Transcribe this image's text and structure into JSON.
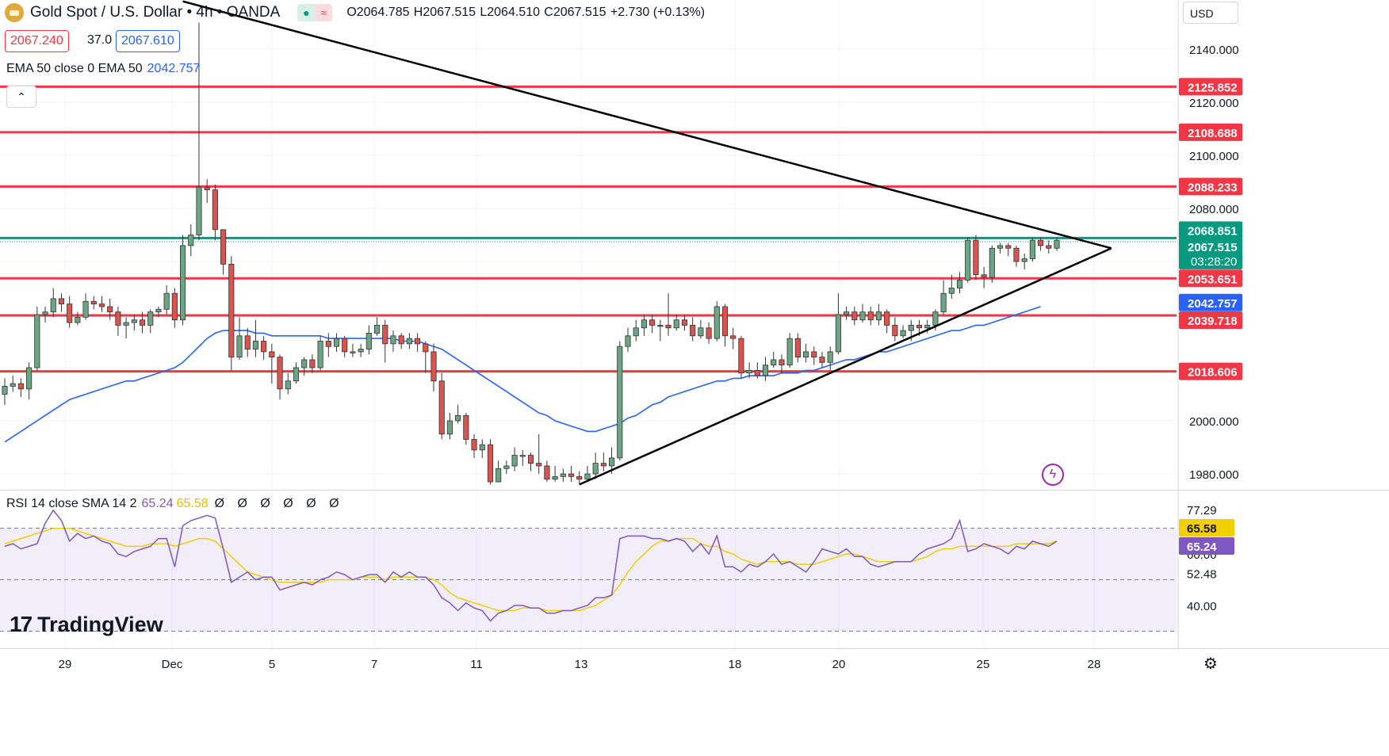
{
  "header": {
    "symbol": "Gold Spot / U.S. Dollar",
    "interval": "4h",
    "exchange": "OANDA",
    "title": "Gold Spot / U.S. Dollar • 4h • OANDA",
    "ohlc": {
      "open": "O2064.785",
      "high": "H2067.515",
      "low": "L2064.510",
      "close": "C2067.515",
      "change": "+2.730 (+0.13%)"
    }
  },
  "trade": {
    "sell": "2067.240",
    "spread": "37.0",
    "buy": "2067.610"
  },
  "ema": {
    "label": "EMA 50 close 0 EMA 50",
    "value": "2042.757"
  },
  "rsi_header": {
    "label": "RSI 14 close SMA 14 2",
    "rsi": "65.24",
    "sma": "65.58",
    "zeros": "Ø Ø Ø Ø Ø Ø"
  },
  "currency": "USD",
  "branding": {
    "name": "TradingView",
    "mark": "17"
  },
  "colors": {
    "up": "#6ba583",
    "down": "#d9534f",
    "support": "#f23645",
    "ema": "#2962ff",
    "current": "#089981",
    "rsi": "#7e57c2",
    "rsi_sma": "#f0d000",
    "trend": "#000000"
  },
  "chart_data": [
    {
      "type": "candlestick",
      "y_ticks": [
        1980,
        2000,
        2020,
        2040,
        2060,
        2080,
        2100,
        2120,
        2140
      ],
      "y_tick_labels": [
        "1980.000",
        "2000.000",
        "2020.000",
        "2040.000",
        "2060.000",
        "2080.000",
        "2100.000",
        "2120.000",
        "2140.000"
      ],
      "x_tick_labels": [
        "29",
        "Dec",
        "5",
        "7",
        "11",
        "13",
        "18",
        "20",
        "25",
        "28"
      ],
      "ylim": [
        1976,
        2154
      ],
      "horizontal_levels": [
        2125.852,
        2108.688,
        2088.233,
        2053.651,
        2039.718,
        2018.606
      ],
      "current_price_line": 2068.851,
      "price_labels": [
        {
          "text": "2125.852",
          "value": 2125.852,
          "color": "#f23645"
        },
        {
          "text": "2108.688",
          "value": 2108.688,
          "color": "#f23645"
        },
        {
          "text": "2088.233",
          "value": 2088.233,
          "color": "#f23645"
        },
        {
          "text": "2068.851",
          "value": 2068.851,
          "color": "#089981"
        },
        {
          "text": "2067.515",
          "value": 2067.515,
          "color": "#089981",
          "sub": "03:28:20"
        },
        {
          "text": "2053.651",
          "value": 2053.651,
          "color": "#f23645"
        },
        {
          "text": "2042.757",
          "value": 2042.757,
          "color": "#2962ff"
        },
        {
          "text": "2039.718",
          "value": 2039.718,
          "color": "#f23645"
        },
        {
          "text": "2018.606",
          "value": 2018.606,
          "color": "#f23645"
        }
      ],
      "candles": [
        [
          2010,
          2013,
          2006,
          2016
        ],
        [
          2013,
          2014,
          2011,
          2017
        ],
        [
          2014,
          2012,
          2009,
          2016
        ],
        [
          2012,
          2020,
          2008,
          2022
        ],
        [
          2020,
          2040,
          2019,
          2043
        ],
        [
          2040,
          2041,
          2037,
          2043
        ],
        [
          2041,
          2046,
          2039,
          2050
        ],
        [
          2046,
          2044,
          2041,
          2048
        ],
        [
          2044,
          2037,
          2035,
          2047
        ],
        [
          2037,
          2039,
          2036,
          2041
        ],
        [
          2039,
          2045,
          2038,
          2048
        ],
        [
          2045,
          2044,
          2042,
          2047
        ],
        [
          2044,
          2043,
          2041,
          2047
        ],
        [
          2043,
          2041,
          2038,
          2046
        ],
        [
          2041,
          2036,
          2032,
          2043
        ],
        [
          2036,
          2037,
          2031,
          2039
        ],
        [
          2037,
          2038,
          2034,
          2040
        ],
        [
          2038,
          2036,
          2033,
          2041
        ],
        [
          2036,
          2041,
          2033,
          2042
        ],
        [
          2041,
          2042,
          2039,
          2043
        ],
        [
          2042,
          2048,
          2040,
          2051
        ],
        [
          2048,
          2038,
          2035,
          2050
        ],
        [
          2038,
          2066,
          2036,
          2070
        ],
        [
          2066,
          2070,
          2062,
          2074
        ],
        [
          2070,
          2088,
          2068,
          2150
        ],
        [
          2088,
          2087,
          2082,
          2091
        ],
        [
          2087,
          2072,
          2068,
          2089
        ],
        [
          2072,
          2059,
          2055,
          2072
        ],
        [
          2059,
          2024,
          2019,
          2062
        ],
        [
          2024,
          2032,
          2023,
          2039
        ],
        [
          2032,
          2027,
          2024,
          2035
        ],
        [
          2027,
          2030,
          2024,
          2038
        ],
        [
          2030,
          2026,
          2023,
          2032
        ],
        [
          2026,
          2024,
          2014,
          2029
        ],
        [
          2024,
          2012,
          2008,
          2025
        ],
        [
          2012,
          2015,
          2010,
          2018
        ],
        [
          2015,
          2020,
          2014,
          2022
        ],
        [
          2020,
          2023,
          2017,
          2024
        ],
        [
          2023,
          2020,
          2018,
          2025
        ],
        [
          2020,
          2030,
          2019,
          2032
        ],
        [
          2030,
          2028,
          2024,
          2033
        ],
        [
          2028,
          2031,
          2026,
          2033
        ],
        [
          2031,
          2026,
          2024,
          2032
        ],
        [
          2026,
          2026,
          2024,
          2029
        ],
        [
          2026,
          2027,
          2024,
          2029
        ],
        [
          2027,
          2033,
          2025,
          2036
        ],
        [
          2033,
          2036,
          2032,
          2039
        ],
        [
          2036,
          2029,
          2022,
          2038
        ],
        [
          2029,
          2032,
          2026,
          2034
        ],
        [
          2032,
          2029,
          2027,
          2033
        ],
        [
          2029,
          2031,
          2027,
          2033
        ],
        [
          2031,
          2029,
          2026,
          2033
        ],
        [
          2029,
          2026,
          2018,
          2030
        ],
        [
          2026,
          2015,
          2011,
          2029
        ],
        [
          2015,
          1995,
          1993,
          2018
        ],
        [
          1995,
          2000,
          1993,
          2003
        ],
        [
          2000,
          2002,
          1999,
          2006
        ],
        [
          2002,
          1993,
          1991,
          2003
        ],
        [
          1993,
          1989,
          1986,
          1995
        ],
        [
          1989,
          1991,
          1986,
          1993
        ],
        [
          1991,
          1977,
          1976,
          1993
        ],
        [
          1977,
          1982,
          1977,
          1985
        ],
        [
          1982,
          1983,
          1980,
          1985
        ],
        [
          1983,
          1987,
          1981,
          1990
        ],
        [
          1987,
          1987,
          1983,
          1989
        ],
        [
          1987,
          1984,
          1981,
          1988
        ],
        [
          1984,
          1983,
          1980,
          1995
        ],
        [
          1983,
          1978,
          1977,
          1985
        ],
        [
          1978,
          1979,
          1977,
          1983
        ],
        [
          1979,
          1980,
          1977,
          1982
        ],
        [
          1980,
          1979,
          1977,
          1983
        ],
        [
          1979,
          1978,
          1976,
          1981
        ],
        [
          1978,
          1980,
          1977,
          1983
        ],
        [
          1980,
          1984,
          1978,
          1988
        ],
        [
          1984,
          1983,
          1981,
          1988
        ],
        [
          1983,
          1986,
          1980,
          1990
        ],
        [
          1986,
          2028,
          1985,
          2030
        ],
        [
          2028,
          2032,
          2026,
          2035
        ],
        [
          2032,
          2035,
          2030,
          2038
        ],
        [
          2035,
          2038,
          2032,
          2040
        ],
        [
          2038,
          2036,
          2033,
          2040
        ],
        [
          2036,
          2036,
          2030,
          2038
        ],
        [
          2036,
          2035,
          2032,
          2048
        ],
        [
          2035,
          2038,
          2034,
          2040
        ],
        [
          2038,
          2036,
          2034,
          2040
        ],
        [
          2036,
          2032,
          2030,
          2039
        ],
        [
          2032,
          2035,
          2031,
          2038
        ],
        [
          2035,
          2031,
          2029,
          2037
        ],
        [
          2031,
          2043,
          2030,
          2045
        ],
        [
          2043,
          2032,
          2028,
          2044
        ],
        [
          2032,
          2031,
          2027,
          2035
        ],
        [
          2031,
          2018,
          2016,
          2032
        ],
        [
          2018,
          2019,
          2016,
          2022
        ],
        [
          2019,
          2017,
          2016,
          2022
        ],
        [
          2017,
          2021,
          2015,
          2024
        ],
        [
          2021,
          2023,
          2020,
          2026
        ],
        [
          2023,
          2021,
          2018,
          2025
        ],
        [
          2021,
          2031,
          2020,
          2033
        ],
        [
          2031,
          2024,
          2022,
          2033
        ],
        [
          2024,
          2026,
          2022,
          2029
        ],
        [
          2026,
          2024,
          2021,
          2028
        ],
        [
          2024,
          2022,
          2020,
          2026
        ],
        [
          2022,
          2026,
          2019,
          2028
        ],
        [
          2026,
          2040,
          2025,
          2048
        ],
        [
          2040,
          2041,
          2038,
          2043
        ],
        [
          2041,
          2038,
          2036,
          2043
        ],
        [
          2038,
          2041,
          2037,
          2044
        ],
        [
          2041,
          2038,
          2036,
          2043
        ],
        [
          2038,
          2041,
          2036,
          2044
        ],
        [
          2041,
          2036,
          2033,
          2042
        ],
        [
          2036,
          2032,
          2030,
          2039
        ],
        [
          2032,
          2034,
          2031,
          2036
        ],
        [
          2034,
          2036,
          2030,
          2038
        ],
        [
          2036,
          2035,
          2032,
          2038
        ],
        [
          2035,
          2036,
          2033,
          2038
        ],
        [
          2036,
          2041,
          2034,
          2042
        ],
        [
          2041,
          2048,
          2040,
          2053
        ],
        [
          2048,
          2050,
          2046,
          2055
        ],
        [
          2050,
          2053,
          2048,
          2056
        ],
        [
          2053,
          2068,
          2052,
          2069
        ],
        [
          2068,
          2055,
          2053,
          2070
        ],
        [
          2055,
          2054,
          2050,
          2058
        ],
        [
          2054,
          2065,
          2052,
          2066
        ],
        [
          2065,
          2066,
          2063,
          2067
        ],
        [
          2066,
          2065,
          2062,
          2067
        ],
        [
          2065,
          2060,
          2058,
          2066
        ],
        [
          2060,
          2061,
          2057,
          2063
        ],
        [
          2061,
          2068,
          2060,
          2069
        ],
        [
          2068,
          2066,
          2064,
          2069
        ],
        [
          2066,
          2065,
          2063,
          2068
        ],
        [
          2065,
          2068,
          2064,
          2069
        ]
      ],
      "ema50": [
        1992,
        1994,
        1996,
        1998,
        2000,
        2002,
        2004,
        2006,
        2008,
        2009,
        2010,
        2011,
        2012,
        2013,
        2014,
        2015,
        2015,
        2016,
        2017,
        2018,
        2019,
        2020,
        2022,
        2025,
        2028,
        2031,
        2033,
        2034,
        2034,
        2034,
        2034,
        2033,
        2033,
        2032,
        2032,
        2032,
        2032,
        2032,
        2032,
        2032,
        2031,
        2031,
        2031,
        2031,
        2031,
        2031,
        2031,
        2031,
        2031,
        2030,
        2030,
        2030,
        2029,
        2028,
        2027,
        2025,
        2023,
        2021,
        2019,
        2017,
        2015,
        2013,
        2011,
        2009,
        2007,
        2005,
        2003,
        2002,
        2000,
        1999,
        1998,
        1997,
        1996,
        1996,
        1997,
        1998,
        1999,
        2001,
        2002,
        2004,
        2006,
        2007,
        2009,
        2010,
        2011,
        2012,
        2013,
        2014,
        2015,
        2015,
        2016,
        2016,
        2017,
        2017,
        2017,
        2017,
        2018,
        2018,
        2018,
        2019,
        2019,
        2020,
        2021,
        2022,
        2023,
        2023,
        2024,
        2025,
        2026,
        2026,
        2027,
        2028,
        2029,
        2030,
        2031,
        2032,
        2033,
        2034,
        2034,
        2035,
        2036,
        2036,
        2037,
        2038,
        2039,
        2040,
        2041,
        2042,
        2043
      ],
      "trendlines": [
        {
          "from": {
            "bar": 22,
            "price": 2158
          },
          "to": {
            "bar": 134,
            "price": 2065
          }
        },
        {
          "from": {
            "bar": 71,
            "price": 1976
          },
          "to": {
            "bar": 134,
            "price": 2065
          }
        }
      ]
    },
    {
      "type": "line",
      "name": "RSI",
      "y_ticks": [
        40.0,
        52.48,
        60.0,
        65.58,
        77.29
      ],
      "y_tick_labels": [
        "40.00",
        "52.48",
        "60.00",
        "65.58",
        "77.29"
      ],
      "ylim": [
        31,
        80
      ],
      "band": [
        70,
        30
      ],
      "value_labels": [
        {
          "text": "65.58",
          "color": "#f0d000"
        },
        {
          "text": "65.24",
          "color": "#7e57c2"
        }
      ],
      "rsi": [
        63,
        64,
        62,
        63,
        64,
        72,
        77,
        73,
        65,
        68,
        66,
        67,
        65,
        64,
        60,
        59,
        61,
        62,
        63,
        66,
        66,
        55,
        71,
        73,
        74,
        75,
        74,
        62,
        49,
        51,
        53,
        50,
        51,
        51,
        46,
        47,
        48,
        49,
        48,
        50,
        51,
        53,
        52,
        50,
        51,
        52,
        52,
        49,
        53,
        51,
        53,
        51,
        51,
        48,
        43,
        41,
        38,
        41,
        39,
        38,
        34,
        37,
        38,
        40,
        40,
        39,
        39,
        37,
        37,
        38,
        38,
        39,
        40,
        43,
        43,
        44,
        66,
        67,
        67,
        67,
        66,
        66,
        65,
        66,
        65,
        61,
        64,
        60,
        67,
        55,
        55,
        53,
        56,
        55,
        57,
        60,
        56,
        57,
        55,
        53,
        57,
        62,
        61,
        60,
        62,
        59,
        59,
        56,
        55,
        56,
        57,
        57,
        57,
        60,
        62,
        63,
        64,
        66,
        73,
        61,
        62,
        64,
        63,
        62,
        60,
        63,
        62,
        65,
        64,
        63,
        65
      ],
      "rsi_sma": [
        64,
        65,
        66,
        67,
        68,
        69,
        70,
        70,
        70,
        69,
        68,
        67,
        66,
        65,
        64,
        63,
        63,
        63,
        64,
        64,
        64,
        63,
        64,
        65,
        66,
        66,
        65,
        62,
        59,
        56,
        53,
        52,
        51,
        50,
        49,
        49,
        49,
        49,
        49,
        49,
        50,
        50,
        50,
        50,
        51,
        51,
        51,
        50,
        51,
        51,
        51,
        51,
        51,
        50,
        48,
        45,
        43,
        42,
        41,
        40,
        39,
        38,
        38,
        38,
        39,
        39,
        39,
        38,
        38,
        38,
        38,
        38,
        39,
        40,
        42,
        44,
        48,
        53,
        57,
        60,
        63,
        65,
        65,
        66,
        66,
        66,
        64,
        63,
        63,
        61,
        60,
        58,
        57,
        56,
        57,
        57,
        57,
        57,
        56,
        56,
        56,
        57,
        58,
        59,
        60,
        60,
        59,
        58,
        57,
        57,
        57,
        57,
        57,
        58,
        59,
        61,
        62,
        62,
        63,
        63,
        63,
        63,
        63,
        63,
        63,
        64,
        64,
        64,
        64,
        64,
        65
      ]
    }
  ]
}
